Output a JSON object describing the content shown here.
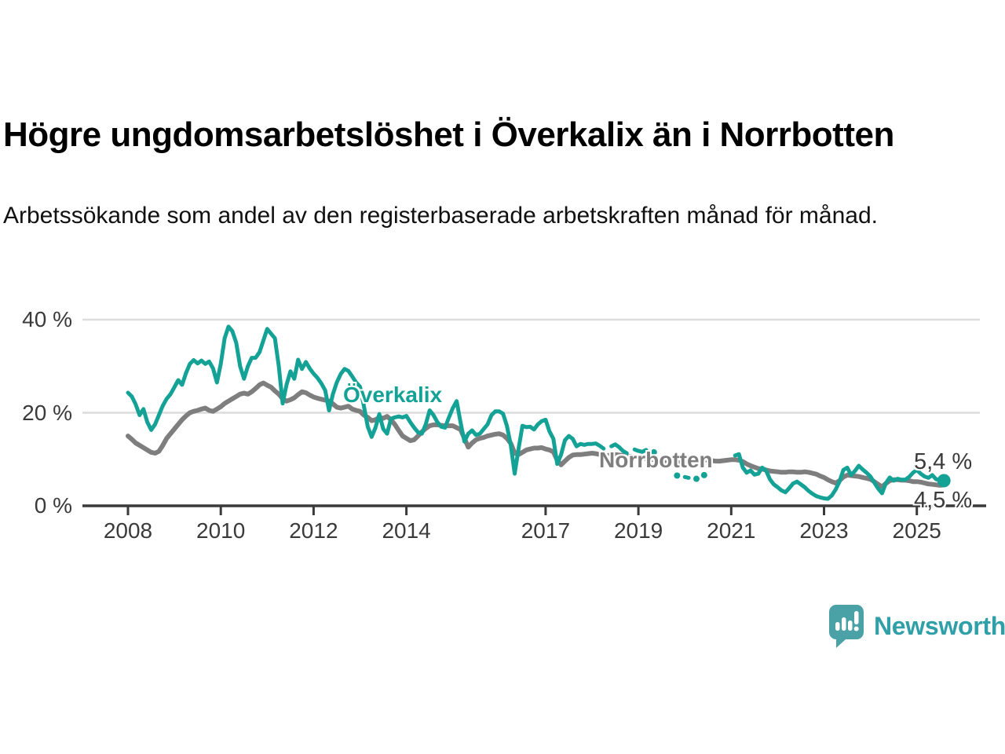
{
  "header": {
    "title": "Högre ungdomsarbetslöshet i Överkalix än i Norrbotten",
    "subtitle": "Arbetssökande som andel av den registerbaserade arbetskraften månad för månad."
  },
  "chart": {
    "series_labels": {
      "overkalix": "Överkalix",
      "norrbotten": "Norrbotten"
    },
    "end_value_labels": {
      "overkalix": "5,4 %",
      "norrbotten": "4,5 %"
    }
  },
  "chart_data": {
    "type": "line",
    "unit": "percent",
    "frequency": "monthly",
    "x_start": "2008-01",
    "x_end": "2025-08",
    "ylim": [
      0,
      42
    ],
    "grid": "horizontal",
    "legend_position": "inline-labels",
    "y_ticks": [
      {
        "value": 0,
        "label": "0 %"
      },
      {
        "value": 20,
        "label": "20 %"
      },
      {
        "value": 40,
        "label": "40 %"
      }
    ],
    "y_gridlines": [
      20,
      40
    ],
    "x_ticks": [
      {
        "year": 2008,
        "label": "2008"
      },
      {
        "year": 2010,
        "label": "2010"
      },
      {
        "year": 2012,
        "label": "2012"
      },
      {
        "year": 2014,
        "label": "2014"
      },
      {
        "year": 2017,
        "label": "2017"
      },
      {
        "year": 2019,
        "label": "2019"
      },
      {
        "year": 2021,
        "label": "2021"
      },
      {
        "year": 2023,
        "label": "2023"
      },
      {
        "year": 2025,
        "label": "2025"
      }
    ],
    "series": [
      {
        "name": "Överkalix",
        "color": "#14a296",
        "end_label": "5,4 %",
        "last_value": 5.4,
        "values": [
          24.3,
          23.5,
          21.8,
          19.5,
          20.8,
          18,
          16.3,
          17.5,
          19.5,
          21.5,
          23,
          24,
          25.5,
          27,
          26,
          28.5,
          30.5,
          31.3,
          30.6,
          31.2,
          30.5,
          31,
          29.5,
          26.5,
          30.5,
          36,
          38.5,
          37.5,
          35,
          30,
          27.3,
          30,
          31.8,
          31.8,
          33,
          35.5,
          38,
          37,
          36,
          30,
          22,
          26,
          28.9,
          27.3,
          31.4,
          29.4,
          30.9,
          29.5,
          28.4,
          27.5,
          26.3,
          24.8,
          20.5,
          24,
          26.5,
          28.3,
          29.4,
          29,
          27.8,
          26.5,
          25.6,
          21.5,
          17,
          14.8,
          16.8,
          19.7,
          16.5,
          15.5,
          18.7,
          19,
          19.2,
          19,
          19.3,
          18,
          16.8,
          15.8,
          15.5,
          17.5,
          20.5,
          19.5,
          18,
          17,
          16.8,
          19,
          21,
          22.5,
          18,
          13.8,
          15.5,
          16.2,
          15.2,
          15.5,
          16.5,
          17.5,
          19.5,
          20.3,
          20.3,
          19.8,
          17.2,
          13,
          6.9,
          12.2,
          17.2,
          16.9,
          17,
          16.4,
          17.5,
          18.2,
          18.5,
          16,
          14.4,
          9,
          11,
          14.1,
          15,
          14.4,
          12.8,
          13.3,
          13.1,
          13.3,
          13.3,
          13.4,
          12.9,
          12.3,
          null,
          12.8,
          13.2,
          12.6,
          11.8,
          11.3,
          null,
          12.1,
          11.8,
          11.6,
          12,
          null,
          11.5,
          null,
          null,
          null,
          null,
          null,
          6.5,
          null,
          6.2,
          6,
          null,
          5.8,
          null,
          6.6,
          null,
          null,
          null,
          null,
          null,
          null,
          null,
          10.8,
          11.1,
          8.2,
          7.1,
          7.6,
          6.7,
          6.9,
          8.2,
          7.6,
          5.7,
          4.6,
          4,
          3.3,
          2.9,
          3.8,
          4.8,
          5.2,
          4.6,
          4,
          3.2,
          2.6,
          2.1,
          1.8,
          1.6,
          1.5,
          2.2,
          3.5,
          5.2,
          7.7,
          8.2,
          6.6,
          7.5,
          8.6,
          7.8,
          7.1,
          6.3,
          5,
          3.7,
          2.7,
          4.9,
          6.1,
          5.4,
          5.8,
          5.6,
          5.6,
          6.2,
          7.1,
          7.7,
          6.9,
          6.3,
          6,
          6.6,
          5.7,
          5.5,
          5.4
        ]
      },
      {
        "name": "Norrbotten",
        "color": "#7e7e7e",
        "end_label": "4,5 %",
        "last_value": 4.5,
        "values": [
          15,
          14.3,
          13.5,
          13,
          12.5,
          12,
          11.5,
          11.3,
          11.7,
          13,
          14.5,
          15.5,
          16.5,
          17.5,
          18.5,
          19.3,
          20,
          20.3,
          20.5,
          20.8,
          21,
          20.5,
          20.3,
          20.8,
          21.3,
          22,
          22.5,
          23,
          23.5,
          24,
          24.2,
          24,
          24.5,
          25.2,
          26,
          26.4,
          25.9,
          25.5,
          24.7,
          24,
          23,
          22.5,
          22.8,
          23.2,
          23.9,
          24.5,
          24.3,
          23.8,
          23.4,
          23.1,
          22.9,
          22.7,
          22.5,
          21.9,
          21.2,
          21,
          21.2,
          21.4,
          20.8,
          20.5,
          20.3,
          19.5,
          19,
          18.3,
          18.5,
          19,
          18.8,
          19.2,
          18.5,
          17.5,
          16.2,
          15,
          14.5,
          14,
          14.2,
          15,
          15.9,
          16.6,
          17.2,
          17.4,
          17.4,
          17.3,
          17.2,
          17.2,
          17.2,
          16.8,
          16.4,
          14.5,
          12.6,
          13.5,
          14.2,
          14.5,
          14.7,
          15,
          15.2,
          15.4,
          15.5,
          15.2,
          14.5,
          13.4,
          11.3,
          11,
          11.5,
          12,
          12.2,
          12.4,
          12.4,
          12.5,
          12.2,
          12,
          11.6,
          9.8,
          8.8,
          9.6,
          10.4,
          10.9,
          11,
          11,
          11.1,
          11.2,
          11.3,
          11.2,
          11,
          10.8,
          10.8,
          10.9,
          11,
          10.9,
          10.8,
          10.7,
          10.6,
          10.5,
          10.4,
          10.3,
          10.2,
          10,
          9.9,
          9.8,
          9.7,
          9.6,
          9.5,
          9.4,
          9.3,
          9.2,
          9.5,
          9.5,
          9.6,
          10,
          10.2,
          10,
          9.8,
          9.7,
          9.6,
          9.6,
          9.7,
          9.8,
          9.9,
          9.9,
          9.8,
          9.5,
          9,
          8.6,
          8.3,
          8,
          7.9,
          7.7,
          7.5,
          7.4,
          7.3,
          7.2,
          7.2,
          7.3,
          7.3,
          7.2,
          7.2,
          7.3,
          7.2,
          7,
          6.8,
          6.4,
          6.1,
          5.6,
          5.2,
          4.9,
          5.4,
          6.2,
          6.6,
          6.5,
          6.4,
          6.3,
          6.1,
          5.9,
          5.7,
          5.2,
          4.6,
          4.1,
          4.8,
          5.4,
          5.6,
          5.6,
          5.5,
          5.5,
          5.4,
          5.2,
          5.2,
          5.1,
          4.9,
          4.7,
          4.6,
          4.5,
          4.4,
          4.5
        ]
      }
    ]
  },
  "footer": {
    "brand": "Newsworthy",
    "brand_color": "#2f9fa8",
    "logo_bubble_color": "#4aa1a6",
    "logo_icon": "speech-bubble-bar-chart"
  }
}
